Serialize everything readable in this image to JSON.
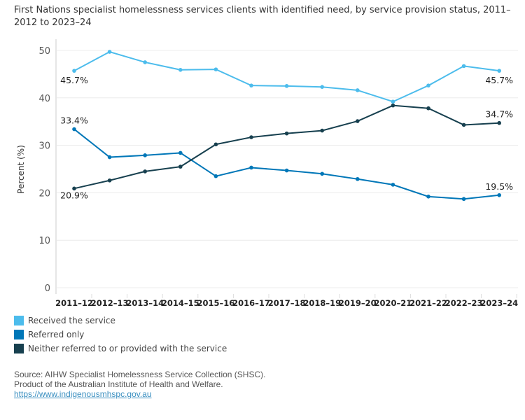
{
  "chart_data": {
    "type": "line",
    "title": "First Nations specialist homelessness services clients with identified need, by service provision status, 2011–2012 to 2023–24",
    "ylabel": "Percent (%)",
    "ylim": [
      0,
      50
    ],
    "yticks": [
      0,
      10,
      20,
      30,
      40,
      50
    ],
    "grid": true,
    "legend_placement": "bottom-left",
    "categories": [
      "2011–12",
      "2012–13",
      "2013–14",
      "2014–15",
      "2015–16",
      "2016–17",
      "2017–18",
      "2018–19",
      "2019–20",
      "2020–21",
      "2021–22",
      "2022–23",
      "2023–24"
    ],
    "series": [
      {
        "name": "Received the service",
        "color": "#4cbcec",
        "values": [
          45.7,
          49.7,
          47.5,
          45.9,
          46.0,
          42.6,
          42.5,
          42.3,
          41.6,
          39.2,
          42.6,
          46.7,
          45.7
        ],
        "labels": {
          "0": "45.7%",
          "12": "45.7%"
        }
      },
      {
        "name": "Referred only",
        "color": "#0077b8",
        "values": [
          33.4,
          27.5,
          27.9,
          28.4,
          23.5,
          25.3,
          24.7,
          24.0,
          22.9,
          21.7,
          19.2,
          18.7,
          19.5
        ],
        "labels": {
          "0": "33.4%",
          "12": "19.5%"
        }
      },
      {
        "name": "Neither referred to or provided with the service",
        "color": "#17404f",
        "values": [
          20.9,
          22.6,
          24.5,
          25.5,
          30.2,
          31.7,
          32.5,
          33.1,
          35.1,
          38.4,
          37.8,
          34.3,
          34.7
        ],
        "labels": {
          "0": "20.9%",
          "12": "34.7%"
        }
      }
    ]
  },
  "source": {
    "line1": "Source: AIHW Specialist Homelessness Service Collection (SHSC).",
    "line2": "Product of the Australian Institute of Health and Welfare.",
    "link": "https://www.indigenousmhspc.gov.au"
  }
}
